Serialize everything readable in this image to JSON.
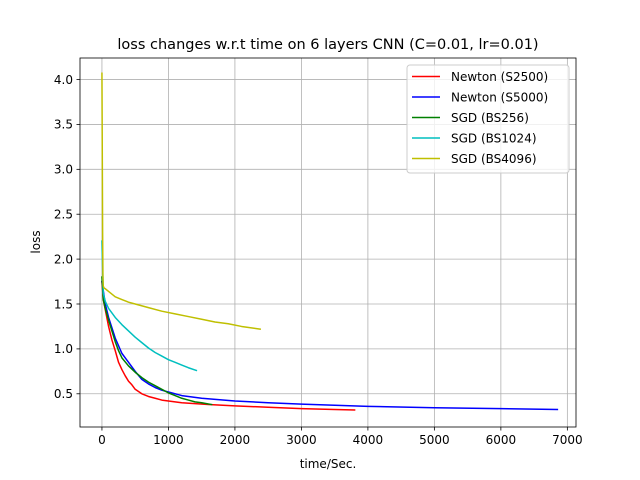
{
  "chart_data": {
    "type": "line",
    "title": "loss changes w.r.t time on 6 layers CNN (C=0.01, lr=0.01)",
    "xlabel": "time/Sec.",
    "ylabel": "loss",
    "xlim": [
      -330,
      7130
    ],
    "ylim": [
      0.13,
      4.24
    ],
    "xticks": [
      0,
      1000,
      2000,
      3000,
      4000,
      5000,
      6000,
      7000
    ],
    "yticks": [
      0.5,
      1.0,
      1.5,
      2.0,
      2.5,
      3.0,
      3.5,
      4.0
    ],
    "xtick_labels": [
      "0",
      "1000",
      "2000",
      "3000",
      "4000",
      "5000",
      "6000",
      "7000"
    ],
    "ytick_labels": [
      "0.5",
      "1.0",
      "1.5",
      "2.0",
      "2.5",
      "3.0",
      "3.5",
      "4.0"
    ],
    "grid": true,
    "legend_position": "top-right",
    "series": [
      {
        "name": "Newton (S2500)",
        "color": "#ff0000",
        "x": [
          0,
          20,
          60,
          100,
          150,
          200,
          250,
          300,
          350,
          400,
          450,
          500,
          600,
          700,
          800,
          900,
          1000,
          1200,
          1400,
          1600,
          2000,
          2500,
          3000,
          3500,
          3800
        ],
        "y": [
          1.75,
          1.55,
          1.4,
          1.25,
          1.1,
          0.98,
          0.85,
          0.77,
          0.7,
          0.64,
          0.6,
          0.55,
          0.5,
          0.47,
          0.45,
          0.43,
          0.42,
          0.4,
          0.39,
          0.38,
          0.365,
          0.35,
          0.335,
          0.325,
          0.32
        ]
      },
      {
        "name": "Newton (S5000)",
        "color": "#0000ff",
        "x": [
          0,
          50,
          100,
          200,
          300,
          400,
          500,
          600,
          700,
          800,
          900,
          1000,
          1200,
          1500,
          2000,
          2500,
          3000,
          4000,
          5000,
          6000,
          6850
        ],
        "y": [
          1.75,
          1.5,
          1.35,
          1.12,
          0.95,
          0.85,
          0.75,
          0.66,
          0.61,
          0.57,
          0.54,
          0.52,
          0.48,
          0.45,
          0.42,
          0.4,
          0.385,
          0.36,
          0.345,
          0.335,
          0.325
        ]
      },
      {
        "name": "SGD (BS256)",
        "color": "#008000",
        "x": [
          0,
          20,
          50,
          100,
          150,
          200,
          250,
          300,
          400,
          500,
          600,
          700,
          800,
          900,
          1000,
          1100,
          1200,
          1300,
          1400,
          1500,
          1650
        ],
        "y": [
          1.8,
          1.55,
          1.45,
          1.32,
          1.2,
          1.08,
          0.98,
          0.9,
          0.81,
          0.74,
          0.68,
          0.63,
          0.59,
          0.55,
          0.51,
          0.48,
          0.45,
          0.43,
          0.41,
          0.4,
          0.38
        ]
      },
      {
        "name": "SGD (BS1024)",
        "color": "#00bfbf",
        "x": [
          0,
          20,
          50,
          100,
          200,
          300,
          400,
          500,
          600,
          700,
          800,
          900,
          1000,
          1100,
          1200,
          1300,
          1420
        ],
        "y": [
          2.2,
          1.62,
          1.53,
          1.45,
          1.35,
          1.27,
          1.2,
          1.13,
          1.07,
          1.01,
          0.96,
          0.92,
          0.88,
          0.85,
          0.82,
          0.79,
          0.76
        ]
      },
      {
        "name": "SGD (BS4096)",
        "color": "#bfbf00",
        "x": [
          0,
          5,
          10,
          15,
          20,
          30,
          50,
          100,
          200,
          300,
          400,
          500,
          700,
          900,
          1100,
          1300,
          1500,
          1700,
          1900,
          2100,
          2380
        ],
        "y": [
          4.07,
          3.2,
          2.3,
          1.8,
          1.7,
          1.68,
          1.67,
          1.64,
          1.58,
          1.55,
          1.52,
          1.5,
          1.46,
          1.42,
          1.39,
          1.36,
          1.33,
          1.3,
          1.28,
          1.25,
          1.22
        ]
      }
    ]
  }
}
